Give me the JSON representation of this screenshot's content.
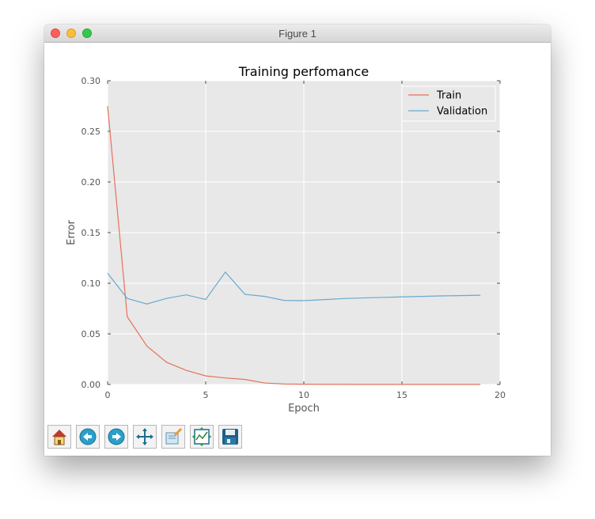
{
  "window": {
    "title": "Figure 1"
  },
  "toolbar": {
    "buttons": [
      {
        "icon": "home-icon"
      },
      {
        "icon": "back-arrow-icon"
      },
      {
        "icon": "forward-arrow-icon"
      },
      {
        "icon": "pan-icon"
      },
      {
        "icon": "zoom-icon"
      },
      {
        "icon": "subplots-icon"
      },
      {
        "icon": "save-icon"
      }
    ]
  },
  "chart_data": {
    "type": "line",
    "title": "Training perfomance",
    "xlabel": "Epoch",
    "ylabel": "Error",
    "xlim": [
      0,
      20
    ],
    "ylim": [
      0.0,
      0.3
    ],
    "xticks": [
      "0",
      "5",
      "10",
      "15",
      "20"
    ],
    "yticks": [
      "0.00",
      "0.05",
      "0.10",
      "0.15",
      "0.20",
      "0.25",
      "0.30"
    ],
    "grid": true,
    "legend_position": "top-right",
    "x": [
      0,
      1,
      2,
      3,
      4,
      5,
      6,
      7,
      8,
      9,
      10,
      11,
      12,
      13,
      14,
      15,
      16,
      17,
      18,
      19
    ],
    "series": [
      {
        "name": "Train",
        "color": "#e5725c",
        "values": [
          0.275,
          0.067,
          0.038,
          0.022,
          0.014,
          0.0085,
          0.0065,
          0.005,
          0.0015,
          0.0005,
          0.0003,
          0.0002,
          0.0002,
          0.0001,
          0.0001,
          0.0001,
          0.0001,
          0.0001,
          0.0001,
          0.0001
        ]
      },
      {
        "name": "Validation",
        "color": "#67a9cf",
        "values": [
          0.11,
          0.085,
          0.0795,
          0.085,
          0.0885,
          0.084,
          0.111,
          0.089,
          0.087,
          0.083,
          0.0828,
          0.0838,
          0.0848,
          0.0855,
          0.086,
          0.0865,
          0.087,
          0.0875,
          0.0878,
          0.0882
        ]
      }
    ],
    "colors": {
      "axes_bg": "#e8e8e8",
      "grid": "#ffffff",
      "text": "#555555"
    }
  }
}
